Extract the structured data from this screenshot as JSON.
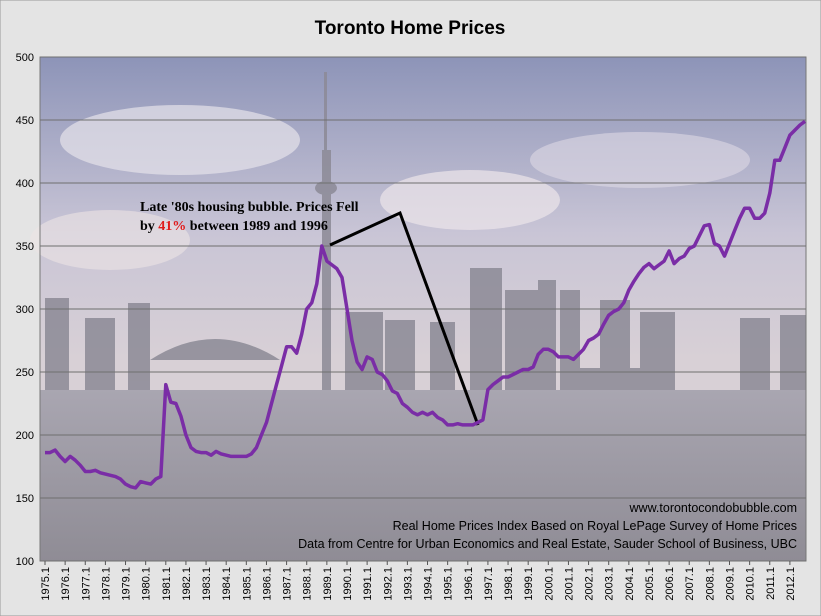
{
  "chart_data": {
    "type": "line",
    "title": "Toronto Home Prices",
    "annotation": {
      "line1": "Late '80s housing bubble. Prices Fell",
      "line2_start": "by",
      "highlight": "41%",
      "line2_end": "between 1989 and 1996"
    },
    "credits": [
      "www.torontocondobubble.com",
      "Real Home Prices Index Based on Royal LePage Survey of Home Prices",
      "Data from Centre for Urban Economics and Real Estate, Sauder School of Business, UBC"
    ],
    "color": "#7a2da6",
    "grid": true,
    "ylim": [
      100,
      500
    ],
    "yticks": [
      100,
      150,
      200,
      250,
      300,
      350,
      400,
      450,
      500
    ],
    "categories": [
      "1975.1",
      null,
      null,
      null,
      "1976.1",
      null,
      null,
      null,
      "1977.1",
      null,
      null,
      null,
      "1978.1",
      null,
      null,
      null,
      "1979.1",
      null,
      null,
      null,
      "1980.1",
      null,
      null,
      null,
      "1981.1",
      null,
      null,
      null,
      "1982.1",
      null,
      null,
      null,
      "1983.1",
      null,
      null,
      null,
      "1984.1",
      null,
      null,
      null,
      "1985.1",
      null,
      null,
      null,
      "1986.1",
      null,
      null,
      null,
      "1987.1",
      null,
      null,
      null,
      "1988.1",
      null,
      null,
      null,
      "1989.1",
      null,
      null,
      null,
      "1990.1",
      null,
      null,
      null,
      "1991.1",
      null,
      null,
      null,
      "1992.1",
      null,
      null,
      null,
      "1993.1",
      null,
      null,
      null,
      "1994.1",
      null,
      null,
      null,
      "1995.1",
      null,
      null,
      null,
      "1996.1",
      null,
      null,
      null,
      "1997.1",
      null,
      null,
      null,
      "1998.1",
      null,
      null,
      null,
      "1999.1",
      null,
      null,
      null,
      "2000.1",
      null,
      null,
      null,
      "2001.1",
      null,
      null,
      null,
      "2002.1",
      null,
      null,
      null,
      "2003.1",
      null,
      null,
      null,
      "2004.1",
      null,
      null,
      null,
      "2005.1",
      null,
      null,
      null,
      "2006.1",
      null,
      null,
      null,
      "2007.1",
      null,
      null,
      null,
      "2008.1",
      null,
      null,
      null,
      "2009.1",
      null,
      null,
      null,
      "2010.1",
      null,
      null,
      null,
      "2011.1",
      null,
      null,
      null,
      "2012.1",
      null,
      null,
      null
    ],
    "values": [
      186,
      186,
      188,
      183,
      179,
      183,
      180,
      176,
      171,
      171,
      172,
      170,
      169,
      168,
      167,
      165,
      161,
      159,
      158,
      163,
      162,
      161,
      165,
      167,
      240,
      226,
      225,
      215,
      200,
      190,
      187,
      186,
      186,
      184,
      187,
      185,
      184,
      183,
      183,
      183,
      183,
      185,
      190,
      200,
      210,
      225,
      240,
      255,
      270,
      270,
      265,
      280,
      300,
      305,
      320,
      350,
      338,
      335,
      332,
      325,
      300,
      275,
      258,
      252,
      262,
      260,
      250,
      248,
      243,
      235,
      233,
      225,
      222,
      218,
      216,
      218,
      216,
      218,
      214,
      212,
      208,
      208,
      209,
      208,
      208,
      208,
      210,
      212,
      236,
      240,
      243,
      246,
      246,
      248,
      250,
      252,
      252,
      254,
      264,
      268,
      268,
      266,
      262,
      262,
      262,
      260,
      264,
      268,
      275,
      277,
      280,
      288,
      295,
      298,
      300,
      305,
      315,
      322,
      328,
      333,
      336,
      332,
      335,
      338,
      346,
      336,
      340,
      342,
      348,
      350,
      358,
      366,
      367,
      352,
      350,
      342,
      352,
      362,
      372,
      380,
      380,
      372,
      372,
      376,
      392,
      418,
      418,
      428,
      438,
      442,
      446,
      449
    ]
  }
}
